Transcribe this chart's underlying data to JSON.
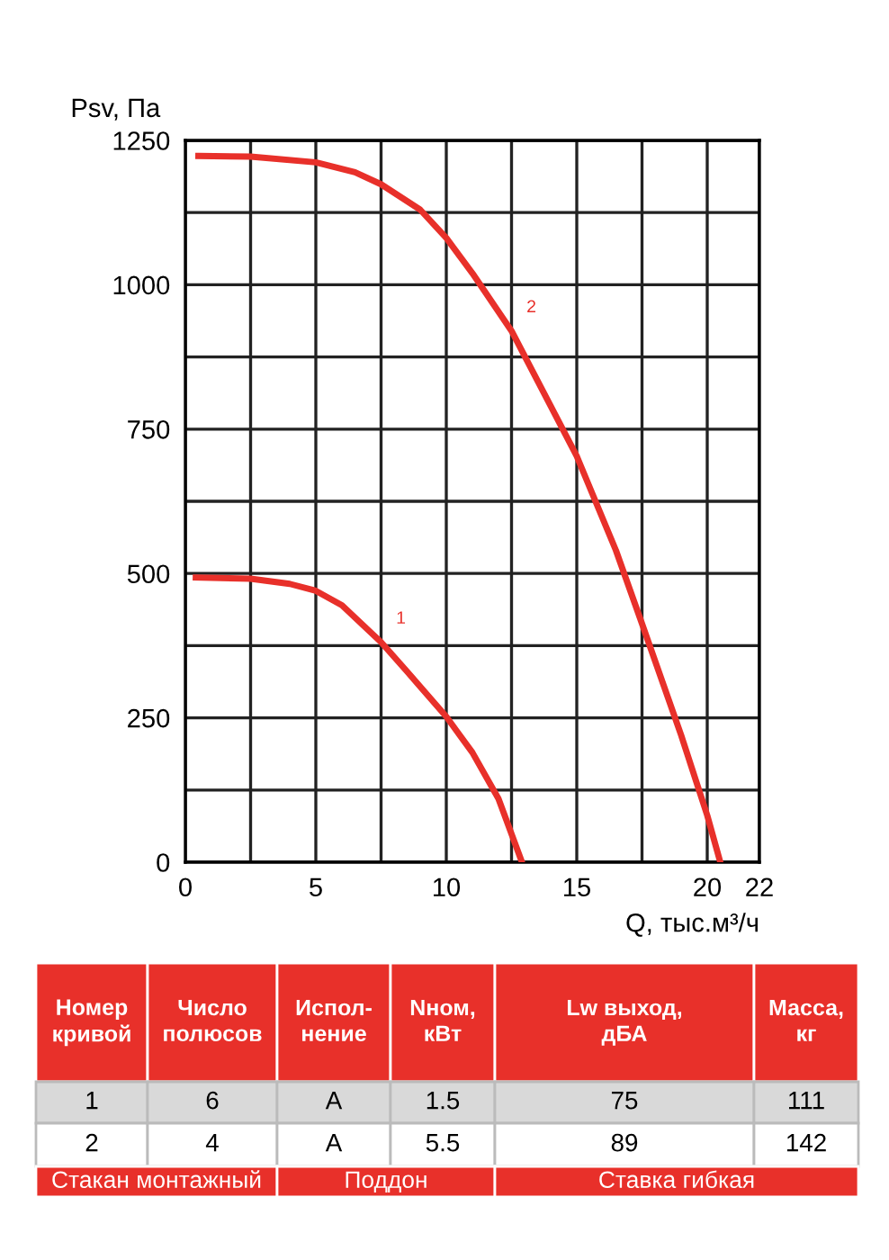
{
  "chart_data": [
    {
      "type": "line",
      "xlabel": "Q, тыс.м³/ч",
      "ylabel": "Psv, Па",
      "xlim": [
        0,
        22
      ],
      "ylim": [
        0,
        1250
      ],
      "xticks": [
        0,
        {
          "value": 2.5,
          "label": null
        },
        5,
        {
          "value": 7.5,
          "label": null
        },
        10,
        {
          "value": 12.5,
          "label": null
        },
        15,
        {
          "value": 17.5,
          "label": null
        },
        20,
        22
      ],
      "yticks": [
        0,
        {
          "value": 125,
          "label": null
        },
        250,
        {
          "value": 375,
          "label": null
        },
        500,
        {
          "value": 625,
          "label": null
        },
        750,
        {
          "value": 875,
          "label": null
        },
        1000,
        {
          "value": 1125,
          "label": null
        },
        1250
      ],
      "grid": true,
      "line_style": "solid",
      "marker": "none",
      "series": [
        {
          "name": "1",
          "color": "#e8302a",
          "x": [
            0.4,
            2.5,
            4,
            5,
            6,
            7.5,
            8.5,
            10,
            11,
            12,
            12.9
          ],
          "values": [
            493,
            491,
            482,
            470,
            445,
            381,
            330,
            252,
            190,
            110,
            0
          ]
        },
        {
          "name": "2",
          "color": "#e8302a",
          "x": [
            0.5,
            2.5,
            5,
            6.5,
            7.5,
            9,
            10,
            11,
            12.5,
            14,
            15,
            16.5,
            17.5,
            19,
            20,
            20.5
          ],
          "values": [
            1223,
            1222,
            1212,
            1195,
            1174,
            1130,
            1081,
            1020,
            920,
            790,
            703,
            540,
            413,
            220,
            81,
            0
          ]
        }
      ]
    },
    {
      "type": "other",
      "annotations": [
        "Номер кривой",
        "Число полюсов",
        "Испол-нение",
        "Nном, кВт",
        "Lw выход, дБА",
        "Масса, кг",
        "1",
        "6",
        "А",
        "1.5",
        "75",
        "111",
        "2",
        "4",
        "А",
        "5.5",
        "89",
        "142",
        "Стакан монтажный",
        "Поддон",
        "Ставка гибкая"
      ]
    }
  ]
}
